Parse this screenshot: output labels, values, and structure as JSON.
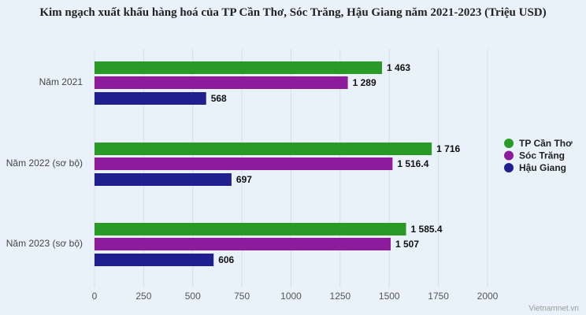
{
  "chart_data": {
    "type": "bar",
    "orientation": "horizontal",
    "title": "Kim ngạch xuất khẩu hàng hoá của TP Cần Thơ, Sóc Trăng, Hậu Giang năm 2021-2023 (Triệu USD)",
    "categories": [
      "Năm 2021",
      "Năm 2022 (sơ bộ)",
      "Năm 2023 (sơ bộ)"
    ],
    "series": [
      {
        "name": "TP Cần Thơ",
        "color": "#2a9a26",
        "values": [
          1463,
          1716,
          1585.4
        ],
        "value_labels": [
          "1 463",
          "1 716",
          "1 585.4"
        ]
      },
      {
        "name": "Sóc Trăng",
        "color": "#8d1c9c",
        "values": [
          1289,
          1516.4,
          1507
        ],
        "value_labels": [
          "1 289",
          "1 516.4",
          "1 507"
        ]
      },
      {
        "name": "Hậu Giang",
        "color": "#1f1f8f",
        "values": [
          568,
          697,
          606
        ],
        "value_labels": [
          "568",
          "697",
          "606"
        ]
      }
    ],
    "xlim": [
      0,
      2000
    ],
    "xticks": [
      0,
      250,
      500,
      750,
      1000,
      1250,
      1500,
      1750,
      2000
    ],
    "grid": true,
    "legend": "right",
    "source": "Vietnamnet.vn"
  }
}
